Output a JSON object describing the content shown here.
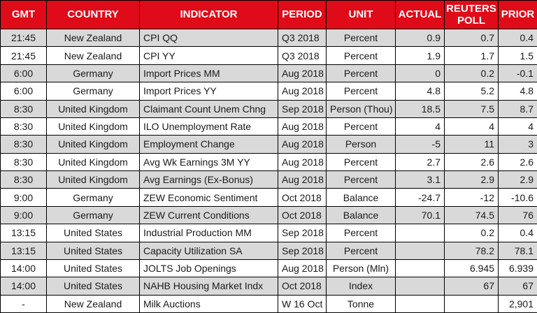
{
  "chart_data": {
    "type": "table",
    "columns": [
      {
        "key": "gmt",
        "label": "GMT",
        "align": "center"
      },
      {
        "key": "country",
        "label": "COUNTRY",
        "align": "center"
      },
      {
        "key": "indicator",
        "label": "INDICATOR",
        "align": "left"
      },
      {
        "key": "period",
        "label": "PERIOD",
        "align": "left"
      },
      {
        "key": "unit",
        "label": "UNIT",
        "align": "center"
      },
      {
        "key": "actual",
        "label": "ACTUAL",
        "align": "right"
      },
      {
        "key": "reuters_poll",
        "label": "REUTERS POLL",
        "align": "right"
      },
      {
        "key": "prior",
        "label": "PRIOR",
        "align": "right"
      }
    ],
    "rows": [
      [
        "21:45",
        "New Zealand",
        "CPI QQ",
        "Q3 2018",
        "Percent",
        "0.9",
        "0.7",
        "0.4"
      ],
      [
        "21:45",
        "New Zealand",
        "CPI YY",
        "Q3 2018",
        "Percent",
        "1.9",
        "1.7",
        "1.5"
      ],
      [
        "6:00",
        "Germany",
        "Import Prices MM",
        "Aug 2018",
        "Percent",
        "0",
        "0.2",
        "-0.1"
      ],
      [
        "6:00",
        "Germany",
        "Import Prices YY",
        "Aug 2018",
        "Percent",
        "4.8",
        "5.2",
        "4.8"
      ],
      [
        "8:30",
        "United Kingdom",
        "Claimant Count Unem Chng",
        "Sep 2018",
        "Person (Thou)",
        "18.5",
        "7.5",
        "8.7"
      ],
      [
        "8:30",
        "United Kingdom",
        "ILO Unemployment Rate",
        "Aug 2018",
        "Percent",
        "4",
        "4",
        "4"
      ],
      [
        "8:30",
        "United Kingdom",
        "Employment Change",
        "Aug 2018",
        "Person",
        "-5",
        "11",
        "3"
      ],
      [
        "8:30",
        "United Kingdom",
        "Avg Wk Earnings 3M YY",
        "Aug 2018",
        "Percent",
        "2.7",
        "2.6",
        "2.6"
      ],
      [
        "8:30",
        "United Kingdom",
        "Avg Earnings (Ex-Bonus)",
        "Aug 2018",
        "Percent",
        "3.1",
        "2.9",
        "2.9"
      ],
      [
        "9:00",
        "Germany",
        "ZEW Economic Sentiment",
        "Oct 2018",
        "Balance",
        "-24.7",
        "-12",
        "-10.6"
      ],
      [
        "9:00",
        "Germany",
        "ZEW Current Conditions",
        "Oct 2018",
        "Balance",
        "70.1",
        "74.5",
        "76"
      ],
      [
        "13:15",
        "United States",
        "Industrial Production MM",
        "Sep 2018",
        "Percent",
        "",
        "0.2",
        "0.4"
      ],
      [
        "13:15",
        "United States",
        "Capacity Utilization SA",
        "Sep 2018",
        "Percent",
        "",
        "78.2",
        "78.1"
      ],
      [
        "14:00",
        "United States",
        "JOLTS Job Openings",
        "Aug 2018",
        "Person (Mln)",
        "",
        "6.945",
        "6.939"
      ],
      [
        "14:00",
        "United States",
        "NAHB Housing Market Indx",
        "Oct 2018",
        "Index",
        "",
        "67",
        "67"
      ],
      [
        "-",
        "New Zealand",
        "Milk Auctions",
        "W 16 Oct",
        "Tonne",
        "",
        "",
        "2,901"
      ]
    ]
  },
  "colors": {
    "header_bg": "#e00b18",
    "header_text": "#ffffff",
    "row_alt_bg": "#d9d9d9",
    "row_bg": "#ffffff",
    "grid": "#000000",
    "text": "#1a1a1a"
  }
}
